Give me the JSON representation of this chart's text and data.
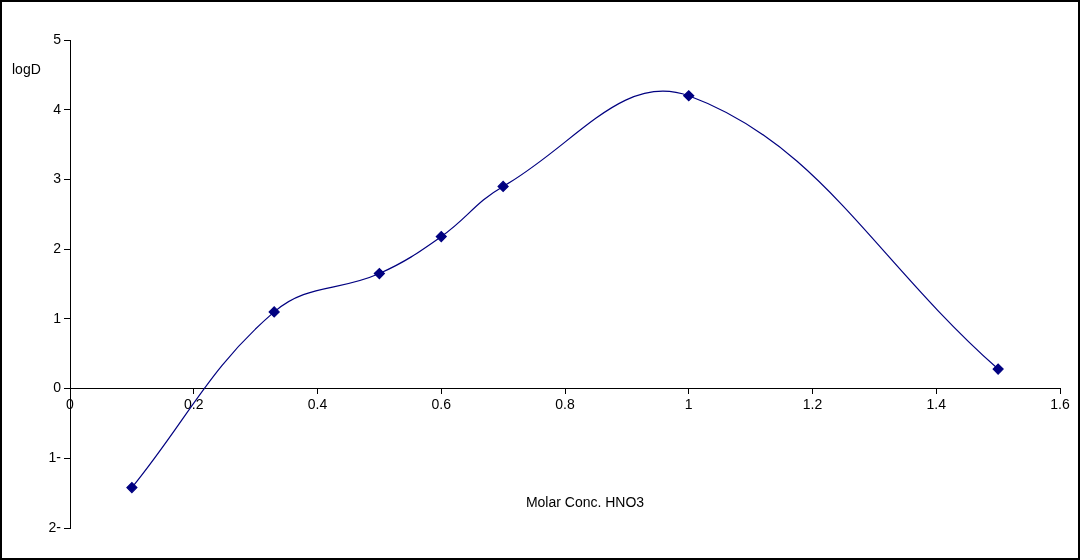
{
  "chart_data": {
    "type": "line",
    "xlabel": "Molar Conc. HNO3",
    "ylabel": "logD",
    "x": [
      0.1,
      0.33,
      0.5,
      0.6,
      0.7,
      1.0,
      1.5
    ],
    "series": [
      {
        "color": "#000080",
        "values": [
          -1.42,
          1.1,
          1.65,
          2.18,
          2.9,
          4.2,
          0.28
        ]
      }
    ],
    "xlim": [
      0,
      1.6
    ],
    "xticks": [
      0,
      0.2,
      0.4,
      0.6,
      0.8,
      1,
      1.2,
      1.4,
      1.6
    ],
    "ylim": [
      -2,
      5
    ],
    "yticks": [
      {
        "value": -2,
        "label": "2-"
      },
      {
        "value": -1,
        "label": "1-"
      },
      0,
      1,
      2,
      3,
      4,
      5
    ],
    "grid": false,
    "legend": false,
    "marker": "diamond",
    "line_style": "solid"
  }
}
